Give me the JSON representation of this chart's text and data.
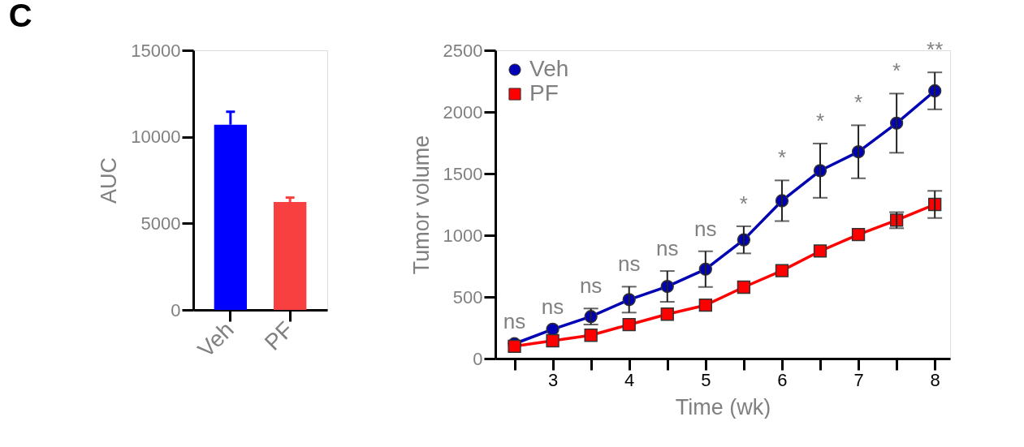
{
  "chart_data": [
    {
      "type": "bar",
      "title": "C",
      "ylabel": "AUC",
      "categories": [
        "Veh",
        "PF"
      ],
      "values": [
        10700,
        6230
      ],
      "errors": [
        [
          10700,
          11450
        ],
        [
          6230,
          6490
        ]
      ],
      "colors": [
        "#0000ff",
        "#f94040"
      ],
      "ylim": [
        0,
        15000
      ],
      "yticks": [
        0,
        5000,
        10000,
        15000
      ],
      "grid": false
    },
    {
      "type": "line",
      "xlabel": "Time (wk)",
      "ylabel": "Tumor volume",
      "xlim": [
        2.25,
        8.2
      ],
      "xticks": [
        {
          "value": 2.5,
          "label": null
        },
        3,
        {
          "value": 3.5,
          "label": null
        },
        4,
        {
          "value": 4.5,
          "label": null
        },
        5,
        {
          "value": 5.5,
          "label": null
        },
        6,
        {
          "value": 6.5,
          "label": null
        },
        7,
        {
          "value": 7.5,
          "label": null
        },
        8
      ],
      "ylim": [
        0,
        2500
      ],
      "yticks": [
        0,
        500,
        1000,
        1500,
        2000,
        2500
      ],
      "grid": false,
      "legend": "top left",
      "x": [
        2.5,
        3,
        3.5,
        4,
        4.5,
        5,
        5.5,
        6,
        6.5,
        7,
        7.5,
        8
      ],
      "series": [
        {
          "name": "Veh",
          "color": "#0000b4",
          "marker": "circle",
          "values": [
            120,
            238,
            341,
            478,
            585,
            725,
            963,
            1280,
            1524,
            1677,
            1909,
            2171
          ],
          "errors": [
            null,
            null,
            65,
            105,
            125,
            145,
            110,
            165,
            220,
            215,
            240,
            150
          ]
        },
        {
          "name": "PF",
          "color": "#ff0000",
          "marker": "square",
          "values": [
            100,
            145,
            189,
            275,
            360,
            433,
            579,
            713,
            872,
            1006,
            1122,
            1250
          ],
          "errors": [
            null,
            null,
            null,
            null,
            null,
            null,
            null,
            null,
            null,
            null,
            65,
            110
          ]
        }
      ],
      "annotations": [
        "ns",
        "ns",
        "ns",
        "ns",
        "ns",
        "ns",
        "*",
        "*",
        "*",
        "*",
        "*",
        "**"
      ]
    }
  ]
}
